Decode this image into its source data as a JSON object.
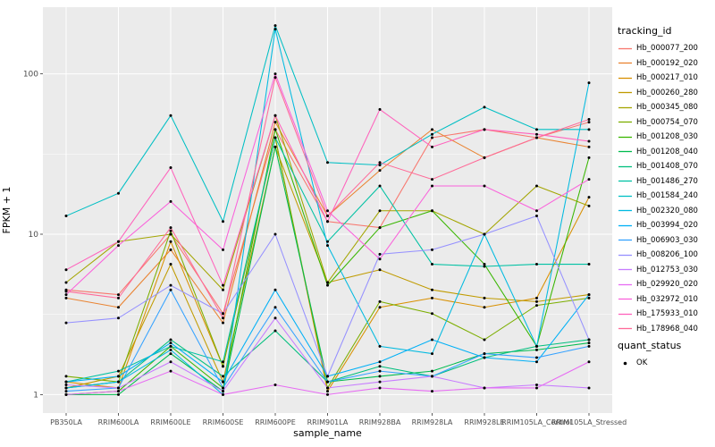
{
  "figure": {
    "y_axis_title": "FPKM + 1",
    "x_axis_title": "sample_name"
  },
  "legend": {
    "tracking_title": "tracking_id",
    "quant_title": "quant_status",
    "quant_items": [
      {
        "label": "OK",
        "color": "#000000"
      }
    ]
  },
  "chart_data": {
    "type": "line",
    "title": "",
    "xlabel": "sample_name",
    "ylabel": "FPKM + 1",
    "y_scale": "log10",
    "y_ticks": [
      1,
      10,
      100
    ],
    "y_tick_labels": [
      "1",
      "10",
      "100"
    ],
    "ylim": [
      1,
      240
    ],
    "grid": true,
    "panel_bg": "#EBEBEB",
    "grid_color": "#FFFFFF",
    "point_color": "#000000",
    "legend_position": "right",
    "categories": [
      "PB350LA",
      "RRIM600LA",
      "RRIM600LE",
      "RRIM600SE",
      "RRIM600PE",
      "RRIM901LA",
      "RRIM928BA",
      "RRIM928LA",
      "RRIM928LE",
      "RRIM105LA_Control",
      "RRIM105LA_Stressed"
    ],
    "series": [
      {
        "name": "Hb_000077_200",
        "color": "#F8766D",
        "values": [
          4.5,
          4.2,
          10,
          3.2,
          45,
          12,
          11,
          40,
          45,
          40,
          50
        ]
      },
      {
        "name": "Hb_000192_020",
        "color": "#EA8331",
        "values": [
          4,
          3.5,
          8,
          2.8,
          50,
          13,
          25,
          45,
          30,
          40,
          35
        ]
      },
      {
        "name": "Hb_000217_010",
        "color": "#D89000",
        "values": [
          1.2,
          1.1,
          9,
          1.5,
          40,
          1.05,
          3.5,
          4,
          3.5,
          4,
          17
        ]
      },
      {
        "name": "Hb_000260_280",
        "color": "#C09B00",
        "values": [
          1.1,
          1.3,
          6.5,
          1.2,
          35,
          5,
          6,
          4.5,
          4,
          3.8,
          4.2
        ]
      },
      {
        "name": "Hb_000345_080",
        "color": "#A3A500",
        "values": [
          5,
          9,
          10,
          4.5,
          55,
          5,
          14,
          14,
          10,
          20,
          15
        ]
      },
      {
        "name": "Hb_000754_070",
        "color": "#7CAE00",
        "values": [
          1.3,
          1.2,
          10.5,
          1.5,
          40,
          1.1,
          3.8,
          3.2,
          2.2,
          3.6,
          4
        ]
      },
      {
        "name": "Hb_001208_030",
        "color": "#39B600",
        "values": [
          1.0,
          1.05,
          2.0,
          1.1,
          45,
          4.8,
          11,
          14,
          6.5,
          2.0,
          30
        ]
      },
      {
        "name": "Hb_001208_040",
        "color": "#00BB4E",
        "values": [
          1.0,
          1.0,
          1.8,
          1.05,
          35,
          1.2,
          1.3,
          1.4,
          1.8,
          1.9,
          2.1
        ]
      },
      {
        "name": "Hb_001408_070",
        "color": "#00BF7D",
        "values": [
          1.1,
          1.2,
          2.2,
          1.3,
          2.5,
          1.2,
          1.5,
          1.3,
          1.7,
          2.0,
          2.2
        ]
      },
      {
        "name": "Hb_001486_270",
        "color": "#00C1A3",
        "values": [
          1.2,
          1.4,
          2.0,
          1.6,
          40,
          9,
          20,
          6.5,
          6.3,
          6.5,
          6.5
        ]
      },
      {
        "name": "Hb_001584_240",
        "color": "#00BFC4",
        "values": [
          13,
          18,
          55,
          12,
          200,
          28,
          27,
          42,
          62,
          45,
          45
        ]
      },
      {
        "name": "Hb_002320_080",
        "color": "#00BAE0",
        "values": [
          1.1,
          1.2,
          1.9,
          1.0,
          190,
          8.5,
          2.0,
          1.8,
          10,
          2.0,
          88
        ]
      },
      {
        "name": "Hb_003994_020",
        "color": "#00B0F6",
        "values": [
          1.2,
          1.3,
          2.1,
          1.2,
          4.5,
          1.3,
          1.6,
          2.2,
          1.7,
          1.6,
          4.2
        ]
      },
      {
        "name": "Hb_006903_030",
        "color": "#35A2FF",
        "values": [
          1.05,
          1.1,
          4.5,
          1.1,
          3.5,
          1.2,
          1.4,
          1.3,
          1.8,
          1.7,
          2.0
        ]
      },
      {
        "name": "Hb_008206_100",
        "color": "#9590FF",
        "values": [
          2.8,
          3.0,
          4.8,
          3.2,
          10,
          1.3,
          7.5,
          8,
          10,
          13,
          2.2
        ]
      },
      {
        "name": "Hb_012753_030",
        "color": "#C77CFF",
        "values": [
          1.15,
          1.1,
          1.6,
          1.05,
          3.0,
          1.1,
          1.2,
          1.3,
          1.1,
          1.15,
          1.1
        ]
      },
      {
        "name": "Hb_029920_020",
        "color": "#E76BF3",
        "values": [
          1.0,
          1.05,
          1.4,
          1.0,
          1.15,
          1.0,
          1.1,
          1.05,
          1.1,
          1.1,
          1.6
        ]
      },
      {
        "name": "Hb_032972_010",
        "color": "#FA62DB",
        "values": [
          4.2,
          8.5,
          16,
          8,
          100,
          14,
          7,
          20,
          20,
          14,
          22
        ]
      },
      {
        "name": "Hb_175933_010",
        "color": "#FF62BC",
        "values": [
          6,
          9,
          26,
          4.8,
          55,
          12,
          60,
          35,
          45,
          42,
          38
        ]
      },
      {
        "name": "Hb_178968_040",
        "color": "#FF6A98",
        "values": [
          4.4,
          4.0,
          11,
          3.0,
          95,
          13,
          28,
          22,
          30,
          40,
          52
        ]
      }
    ]
  }
}
